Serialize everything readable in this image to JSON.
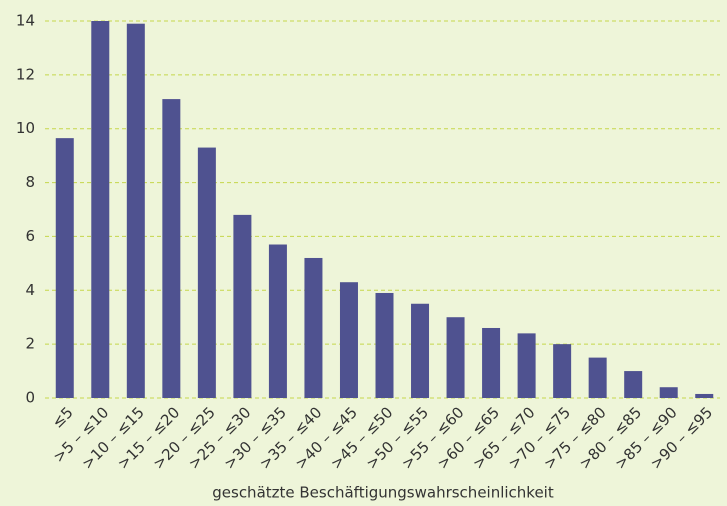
{
  "chart_data": {
    "type": "bar",
    "x_label": "geschätzte Beschäftigungswahrscheinlichkeit",
    "categories": [
      "≤5",
      ">5 – ≤10",
      ">10 – ≤15",
      ">15 – ≤20",
      ">20 – ≤25",
      ">25 – ≤30",
      ">30 – ≤35",
      ">35 – ≤40",
      ">40 – ≤45",
      ">45 – ≤50",
      ">50 – ≤55",
      ">55 – ≤60",
      ">60 – ≤65",
      ">65 – ≤70",
      ">70 – ≤75",
      ">75 – ≤80",
      ">80 – ≤85",
      ">85 – ≤90",
      ">90 – ≤95"
    ],
    "values": [
      9.65,
      14.0,
      13.9,
      11.1,
      9.3,
      6.8,
      5.7,
      5.2,
      4.3,
      3.9,
      3.5,
      3.0,
      2.6,
      2.4,
      2.0,
      1.5,
      1.0,
      0.4,
      0.15
    ],
    "color": "#4f5290",
    "ylim": [
      0,
      14
    ],
    "yticks": [
      0,
      2,
      4,
      6,
      8,
      10,
      12,
      14
    ],
    "grid": true
  }
}
